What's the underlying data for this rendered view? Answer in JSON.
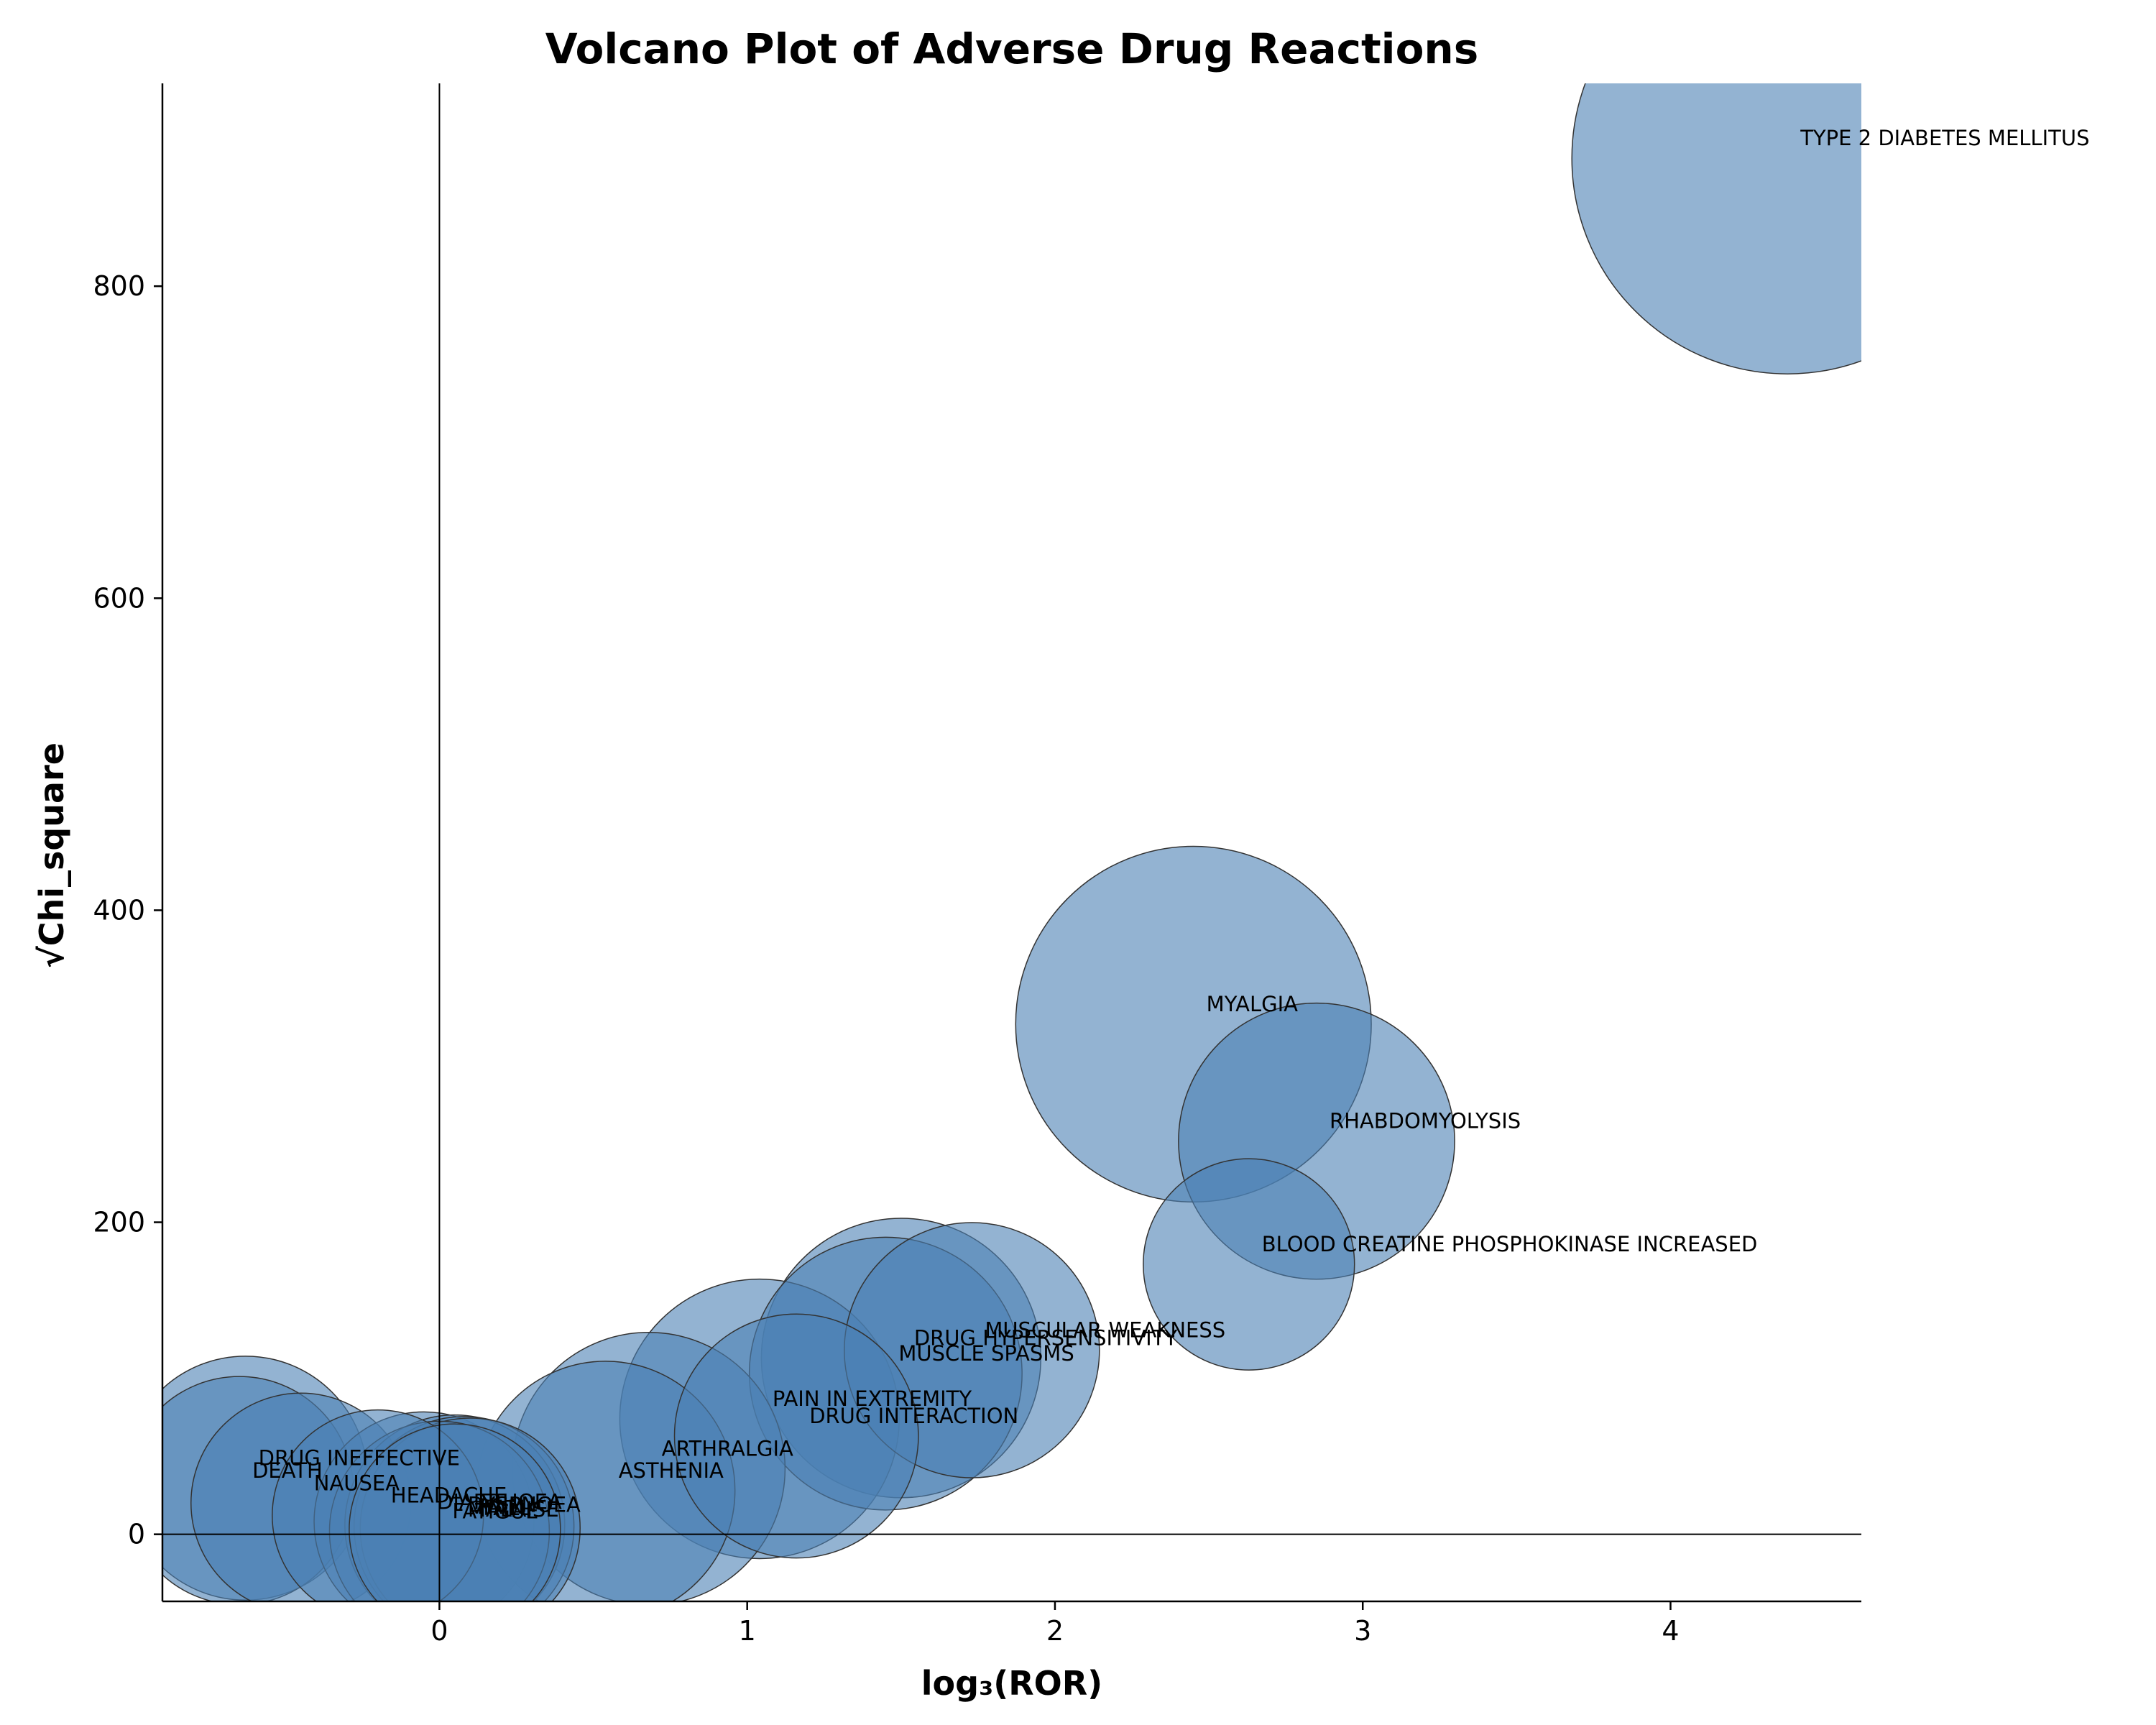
{
  "chart_data": {
    "type": "scatter",
    "title": "Volcano Plot of Adverse Drug Reactions",
    "xlabel": "log₃(ROR)",
    "ylabel": "√Chi_square",
    "xlim": [
      -0.9,
      4.62
    ],
    "ylim": [
      -43,
      930
    ],
    "xticks": [
      0,
      1,
      2,
      3,
      4
    ],
    "yticks": [
      0,
      200,
      400,
      600,
      800
    ],
    "reference_lines": {
      "x": 0,
      "y": 0
    },
    "grid": false,
    "legend": "none",
    "colors": {
      "marker_fill": "#4b80b4",
      "marker_edge": "#333333"
    },
    "marker_opacity": 0.6,
    "note_size": "marker area reflects relative report weight",
    "points": [
      {
        "label": "TYPE 2 DIABETES MELLITUS",
        "x": 4.38,
        "y": 882,
        "size": 100
      },
      {
        "label": "MYALGIA",
        "x": 2.45,
        "y": 327,
        "size": 68
      },
      {
        "label": "RHABDOMYOLYSIS",
        "x": 2.85,
        "y": 252,
        "size": 41
      },
      {
        "label": "BLOOD CREATINE PHOSPHOKINASE INCREASED",
        "x": 2.63,
        "y": 173,
        "size": 24
      },
      {
        "label": "MUSCULAR WEAKNESS",
        "x": 1.73,
        "y": 118,
        "size": 35
      },
      {
        "label": "DRUG HYPERSENSITIVITY",
        "x": 1.5,
        "y": 113,
        "size": 42
      },
      {
        "label": "MUSCLE SPASMS",
        "x": 1.45,
        "y": 103,
        "size": 40
      },
      {
        "label": "PAIN IN EXTREMITY",
        "x": 1.04,
        "y": 74,
        "size": 42
      },
      {
        "label": "DRUG INTERACTION",
        "x": 1.16,
        "y": 63,
        "size": 32
      },
      {
        "label": "ARTHRALGIA",
        "x": 0.68,
        "y": 42,
        "size": 40
      },
      {
        "label": "ASTHENIA",
        "x": 0.54,
        "y": 28,
        "size": 36
      },
      {
        "label": "DRUG INEFFECTIVE",
        "x": -0.63,
        "y": 36,
        "size": 32
      },
      {
        "label": "DEATH",
        "x": -0.65,
        "y": 28,
        "size": 28
      },
      {
        "label": "NAUSEA",
        "x": -0.45,
        "y": 20,
        "size": 26
      },
      {
        "label": "HEADACHE",
        "x": -0.2,
        "y": 12,
        "size": 24
      },
      {
        "label": "DIARRHOEA",
        "x": -0.05,
        "y": 8,
        "size": 26
      },
      {
        "label": "DYSPNOEA",
        "x": 0.05,
        "y": 6,
        "size": 26
      },
      {
        "label": "PAIN",
        "x": 0.08,
        "y": 5,
        "size": 26
      },
      {
        "label": "FALL",
        "x": 0.1,
        "y": 4,
        "size": 26
      },
      {
        "label": "MALAISE",
        "x": 0.05,
        "y": 3,
        "size": 24
      },
      {
        "label": "FATIGUE",
        "x": 0.0,
        "y": 2,
        "size": 26
      }
    ],
    "label_offsets_data": {}
  }
}
